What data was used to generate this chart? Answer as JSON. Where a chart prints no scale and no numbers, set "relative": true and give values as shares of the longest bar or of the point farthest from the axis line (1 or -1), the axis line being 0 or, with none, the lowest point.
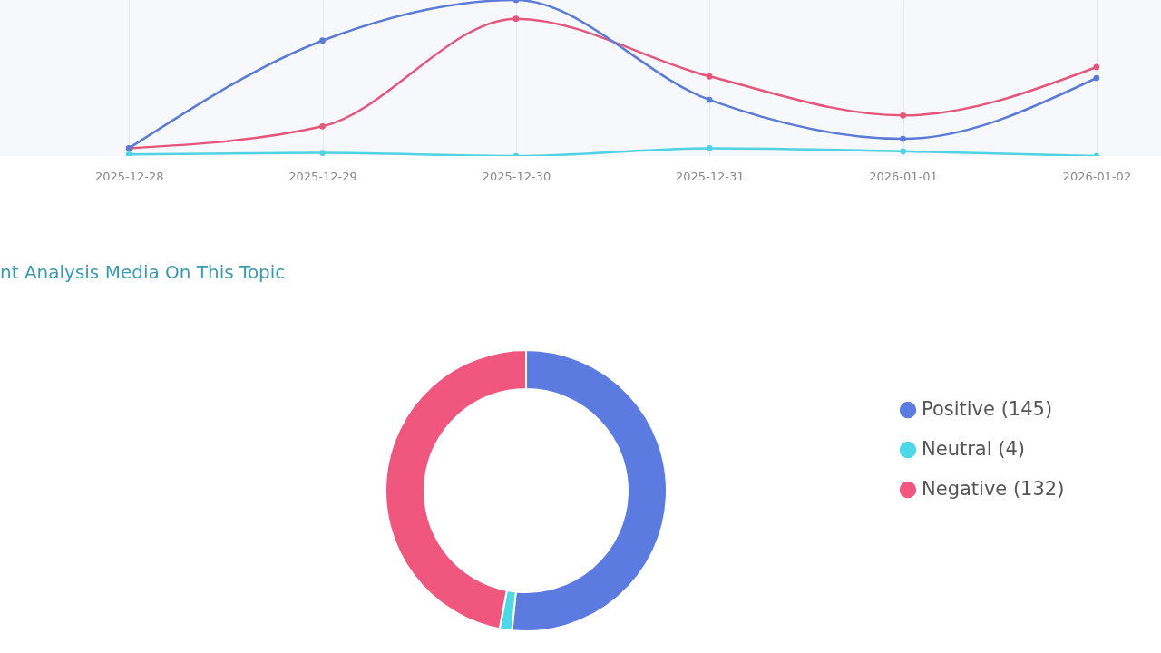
{
  "chart_data": [
    {
      "type": "line",
      "relative": true,
      "x": [
        "2025-12-28",
        "2025-12-29",
        "2025-12-30",
        "2025-12-31",
        "2026-01-01",
        "2026-01-02"
      ],
      "xlim": [
        "2025-12-27T08:00",
        "2026-01-02T08:00"
      ],
      "xticks": [
        "2025-12-28",
        "2025-12-29",
        "2025-12-30",
        "2025-12-31",
        "2026-01-01",
        "2026-01-02"
      ],
      "grid": "x",
      "marker": "circle",
      "line_style": "solid",
      "legend": false,
      "series": [
        {
          "color": "#5b7bd6",
          "values": [
            0.05,
            0.74,
            1.0,
            0.36,
            0.11,
            0.5
          ]
        },
        {
          "color": "#e5577a",
          "values": [
            0.05,
            0.19,
            0.88,
            0.51,
            0.26,
            0.57
          ]
        },
        {
          "color": "#4fd3e3",
          "values": [
            0.01,
            0.02,
            0.0,
            0.05,
            0.03,
            0.0
          ]
        }
      ]
    },
    {
      "type": "donut",
      "title": "nt Analysis Media On This Topic",
      "legend": "right",
      "categories": [
        "Positive (145)",
        "Neutral (4)",
        "Negative (132)"
      ],
      "values": [
        145,
        4,
        132
      ],
      "colors": [
        "#5b7be0",
        "#4dd8e8",
        "#f0577e"
      ]
    }
  ]
}
